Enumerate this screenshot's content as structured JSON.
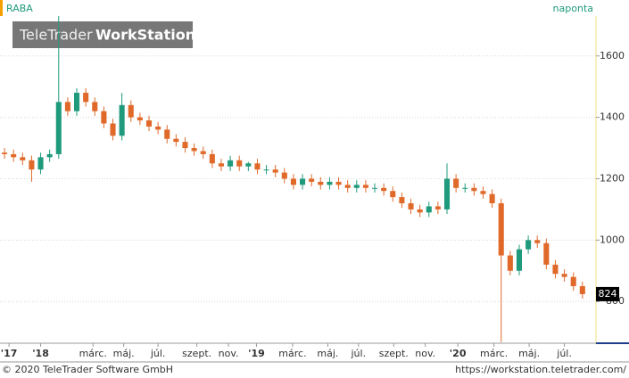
{
  "header": {
    "symbol": "RABA",
    "interval": "naponta",
    "watermark_brand": "TeleTrader",
    "watermark_product": "WorkStation"
  },
  "footer": {
    "copyright": "© 2020 TeleTrader Software GmbH",
    "url": "https://workstation.teletrader.com/"
  },
  "chart_data": {
    "type": "candlestick",
    "up_color": "#1f9a7c",
    "down_color": "#e0692a",
    "open": [
      1285,
      1280,
      1270,
      1260,
      1230,
      1270,
      1280,
      1450,
      1420,
      1480,
      1450,
      1420,
      1380,
      1340,
      1440,
      1400,
      1390,
      1370,
      1360,
      1330,
      1320,
      1300,
      1290,
      1280,
      1250,
      1240,
      1260,
      1240,
      1250,
      1230,
      1230,
      1220,
      1200,
      1180,
      1200,
      1190,
      1180,
      1190,
      1180,
      1170,
      1180,
      1170,
      1170,
      1160,
      1140,
      1120,
      1100,
      1090,
      1110,
      1100,
      1200,
      1170,
      1170,
      1160,
      1150,
      1120,
      950,
      900,
      970,
      1000,
      990,
      920,
      890,
      880,
      850
    ],
    "high": [
      1300,
      1295,
      1285,
      1275,
      1285,
      1295,
      1730,
      1465,
      1495,
      1495,
      1465,
      1435,
      1395,
      1480,
      1455,
      1415,
      1405,
      1385,
      1375,
      1345,
      1335,
      1315,
      1305,
      1295,
      1265,
      1275,
      1275,
      1255,
      1265,
      1245,
      1245,
      1235,
      1215,
      1215,
      1215,
      1205,
      1205,
      1205,
      1195,
      1195,
      1195,
      1185,
      1185,
      1175,
      1155,
      1135,
      1115,
      1125,
      1125,
      1250,
      1215,
      1185,
      1185,
      1175,
      1165,
      1135,
      965,
      985,
      1015,
      1015,
      1005,
      935,
      905,
      895,
      865
    ],
    "low": [
      1265,
      1255,
      1245,
      1190,
      1215,
      1255,
      1265,
      1405,
      1405,
      1435,
      1405,
      1365,
      1325,
      1325,
      1385,
      1375,
      1355,
      1345,
      1315,
      1305,
      1285,
      1275,
      1265,
      1235,
      1225,
      1225,
      1225,
      1225,
      1215,
      1215,
      1205,
      1185,
      1165,
      1165,
      1175,
      1165,
      1165,
      1165,
      1155,
      1155,
      1155,
      1155,
      1145,
      1125,
      1105,
      1085,
      1075,
      1075,
      1085,
      1085,
      1155,
      1155,
      1145,
      1135,
      1105,
      668,
      885,
      885,
      955,
      975,
      905,
      875,
      865,
      835,
      809
    ],
    "close": [
      1280,
      1270,
      1260,
      1230,
      1270,
      1280,
      1450,
      1420,
      1480,
      1450,
      1420,
      1380,
      1340,
      1440,
      1400,
      1390,
      1370,
      1360,
      1330,
      1320,
      1300,
      1290,
      1280,
      1250,
      1240,
      1260,
      1240,
      1250,
      1230,
      1230,
      1220,
      1200,
      1180,
      1200,
      1190,
      1180,
      1190,
      1180,
      1170,
      1180,
      1170,
      1170,
      1160,
      1140,
      1120,
      1100,
      1090,
      1110,
      1100,
      1200,
      1170,
      1170,
      1160,
      1150,
      1120,
      950,
      900,
      970,
      1000,
      990,
      920,
      890,
      880,
      850,
      824
    ],
    "xlim": [
      -0.5,
      65.5
    ],
    "xticks": [
      {
        "value": 0.5,
        "label": "'17"
      },
      {
        "value": 4,
        "label": "'18"
      },
      {
        "value": 9.8,
        "label": "márc."
      },
      {
        "value": 13.2,
        "label": "máj."
      },
      {
        "value": 17,
        "label": "júl."
      },
      {
        "value": 21.3,
        "label": "szept."
      },
      {
        "value": 24.8,
        "label": "nov."
      },
      {
        "value": 27.9,
        "label": "'19"
      },
      {
        "value": 31.9,
        "label": "márc."
      },
      {
        "value": 35.8,
        "label": "máj."
      },
      {
        "value": 39.2,
        "label": "júl."
      },
      {
        "value": 43.1,
        "label": "szept."
      },
      {
        "value": 46.6,
        "label": "nov."
      },
      {
        "value": 50.2,
        "label": "'20"
      },
      {
        "value": 54.2,
        "label": "márc."
      },
      {
        "value": 58.1,
        "label": "máj."
      },
      {
        "value": 62,
        "label": "júl."
      }
    ],
    "ylim": [
      664,
      1730
    ],
    "yticks": [
      800,
      1000,
      1200,
      1400,
      1600
    ],
    "grid": true
  }
}
